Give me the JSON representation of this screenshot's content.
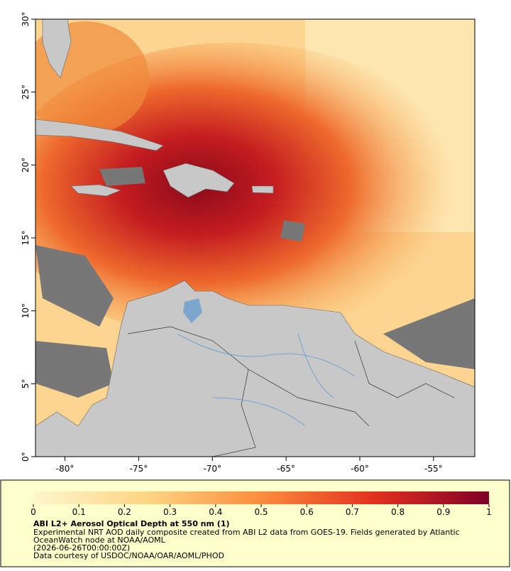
{
  "map": {
    "xlim": [
      -82,
      -52.2
    ],
    "ylim": [
      0,
      30
    ],
    "xticks": [
      {
        "value": -80,
        "label": "-80°"
      },
      {
        "value": -75,
        "label": "-75°"
      },
      {
        "value": -70,
        "label": "-70°"
      },
      {
        "value": -65,
        "label": "-65°"
      },
      {
        "value": -60,
        "label": "-60°"
      },
      {
        "value": -55,
        "label": "-55°"
      }
    ],
    "yticks": [
      {
        "value": 0,
        "label": "0°"
      },
      {
        "value": 5,
        "label": "5°"
      },
      {
        "value": 10,
        "label": "10°"
      },
      {
        "value": 15,
        "label": "15°"
      },
      {
        "value": 20,
        "label": "20°"
      },
      {
        "value": 25,
        "label": "25°"
      },
      {
        "value": 30,
        "label": "30°"
      }
    ]
  },
  "colorbar": {
    "clim": [
      0,
      1
    ],
    "ticks": [
      0,
      0.1,
      0.2,
      0.3,
      0.4,
      0.5,
      0.6,
      0.7,
      0.8,
      0.9,
      1
    ],
    "title": "ABI L2+ Aerosol Optical Depth at 550 nm (1)",
    "lines": [
      "Experimental NRT AOD daily composite created from ABI L2 data from GOES-19. Fields generated by Atlantic",
      "OceanWatch node at NOAA/AOML",
      "(2026-06-26T00:00:00Z)",
      "Data courtesy of USDOC/NOAA/OAR/AOML/PHOD"
    ]
  }
}
